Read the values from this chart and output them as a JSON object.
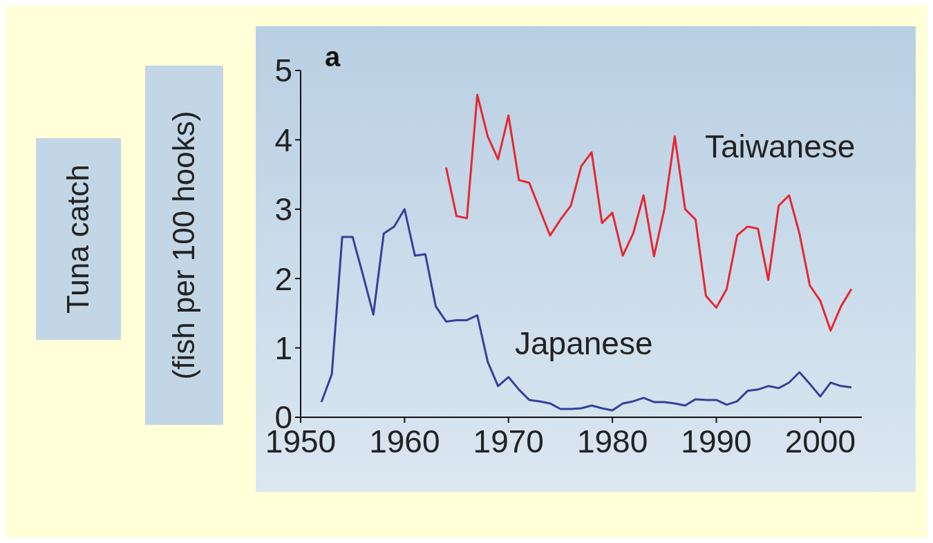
{
  "chart_data": {
    "type": "line",
    "ylabel": "Tuna catch (fish per 100 hooks)",
    "annotations": [
      "a"
    ],
    "xlim": [
      1950,
      2004
    ],
    "xticks": [
      1950,
      1960,
      1970,
      1980,
      1990,
      2000
    ],
    "ylim": [
      0,
      5
    ],
    "yticks": [
      0,
      1,
      2,
      3,
      4,
      5
    ],
    "grid": false,
    "marker": "none",
    "line_style": "solid",
    "series": [
      {
        "name": "Japanese",
        "color": "#35409a",
        "x": [
          1952,
          1953,
          1954,
          1955,
          1956,
          1957,
          1958,
          1959,
          1960,
          1961,
          1962,
          1963,
          1964,
          1965,
          1966,
          1967,
          1968,
          1969,
          1970,
          1971,
          1972,
          1973,
          1974,
          1975,
          1976,
          1977,
          1978,
          1979,
          1980,
          1981,
          1982,
          1983,
          1984,
          1985,
          1986,
          1987,
          1988,
          1989,
          1990,
          1991,
          1992,
          1993,
          1994,
          1995,
          1996,
          1997,
          1998,
          1999,
          2000,
          2001,
          2002,
          2003
        ],
        "values": [
          0.22,
          0.62,
          2.6,
          2.6,
          2.05,
          1.48,
          2.65,
          2.75,
          3.0,
          2.33,
          2.35,
          1.6,
          1.38,
          1.4,
          1.4,
          1.47,
          0.8,
          0.45,
          0.58,
          0.4,
          0.25,
          0.23,
          0.2,
          0.12,
          0.12,
          0.13,
          0.17,
          0.13,
          0.1,
          0.2,
          0.23,
          0.28,
          0.22,
          0.22,
          0.2,
          0.17,
          0.26,
          0.25,
          0.25,
          0.18,
          0.23,
          0.38,
          0.4,
          0.45,
          0.42,
          0.5,
          0.65,
          0.48,
          0.3,
          0.5,
          0.45,
          0.43
        ]
      },
      {
        "name": "Taiwanese",
        "color": "#e8262f",
        "x": [
          1964,
          1965,
          1966,
          1967,
          1968,
          1969,
          1970,
          1971,
          1972,
          1973,
          1974,
          1975,
          1976,
          1977,
          1978,
          1979,
          1980,
          1981,
          1982,
          1983,
          1984,
          1985,
          1986,
          1987,
          1988,
          1989,
          1990,
          1991,
          1992,
          1993,
          1994,
          1995,
          1996,
          1997,
          1998,
          1999,
          2000,
          2001,
          2002,
          2003
        ],
        "values": [
          3.6,
          2.9,
          2.87,
          4.65,
          4.05,
          3.72,
          4.35,
          3.42,
          3.38,
          3.0,
          2.62,
          2.85,
          3.05,
          3.62,
          3.82,
          2.8,
          2.95,
          2.33,
          2.65,
          3.2,
          2.32,
          3.0,
          4.05,
          3.0,
          2.85,
          1.75,
          1.58,
          1.85,
          2.62,
          2.75,
          2.72,
          1.98,
          3.05,
          3.2,
          2.65,
          1.9,
          1.68,
          1.25,
          1.6,
          1.85
        ]
      }
    ]
  }
}
